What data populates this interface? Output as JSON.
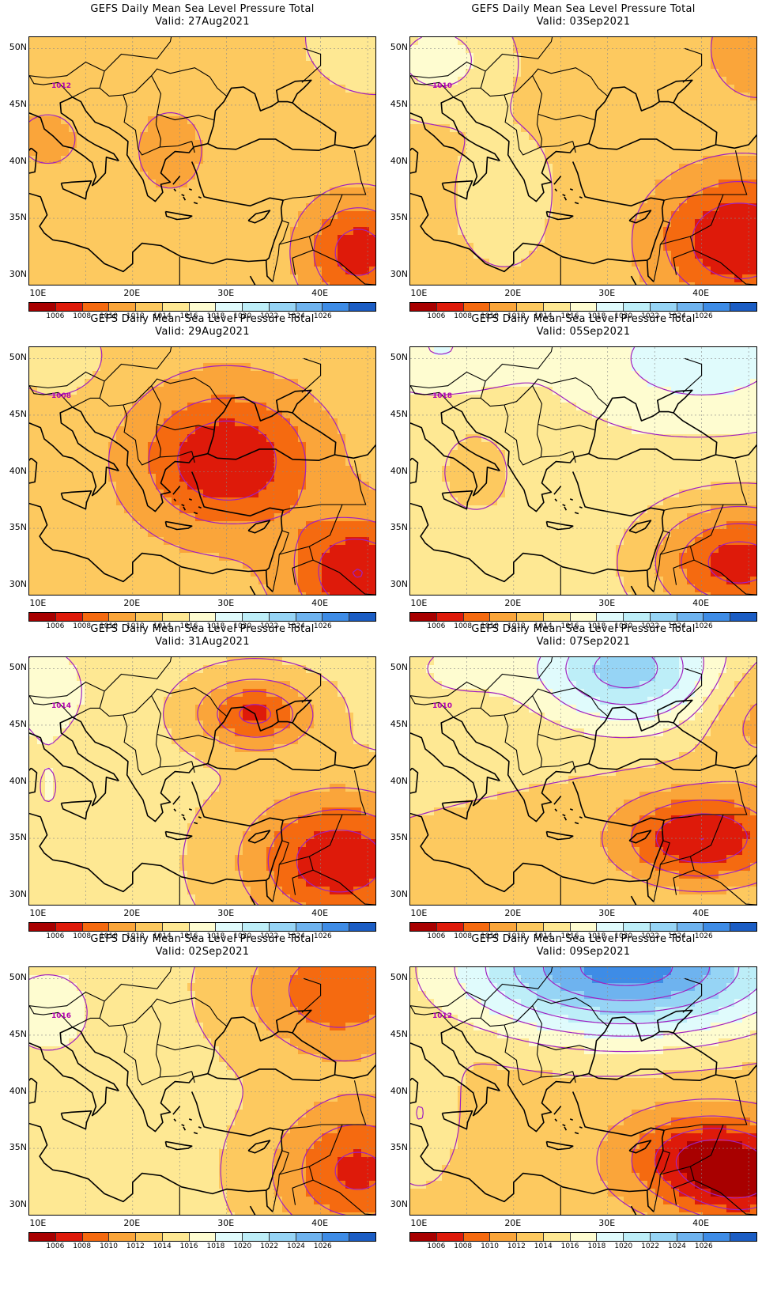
{
  "figure": {
    "panels": [
      {
        "title": "GEFS Daily Mean Sea Level Pressure Total",
        "valid": "Valid: 27Aug2021",
        "pattern": "mild_low",
        "contour_label": "1012"
      },
      {
        "title": "GEFS Daily Mean Sea Level Pressure Total",
        "valid": "Valid: 03Sep2021",
        "pattern": "east_low",
        "contour_label": "1010"
      },
      {
        "title": "GEFS Daily Mean Sea Level Pressure Total",
        "valid": "Valid: 29Aug2021",
        "pattern": "central_low",
        "contour_label": "1008"
      },
      {
        "title": "GEFS Daily Mean Sea Level Pressure Total",
        "valid": "Valid: 05Sep2021",
        "pattern": "north_high",
        "contour_label": "1018"
      },
      {
        "title": "GEFS Daily Mean Sea Level Pressure Total",
        "valid": "Valid: 31Aug2021",
        "pattern": "black_sea_low",
        "contour_label": "1014"
      },
      {
        "title": "GEFS Daily Mean Sea Level Pressure Total",
        "valid": "Valid: 07Sep2021",
        "pattern": "nw_high",
        "contour_label": "1010"
      },
      {
        "title": "GEFS Daily Mean Sea Level Pressure Total",
        "valid": "Valid: 02Sep2021",
        "pattern": "ne_low",
        "contour_label": "1016"
      },
      {
        "title": "GEFS Daily Mean Sea Level Pressure Total",
        "valid": "Valid: 09Sep2021",
        "pattern": "strong_high",
        "contour_label": "1012"
      }
    ],
    "lat_labels": [
      "50N",
      "45N",
      "40N",
      "35N",
      "30N"
    ],
    "lon_labels": [
      "10E",
      "20E",
      "30E",
      "40E"
    ],
    "colorbar_labels": [
      "1006",
      "1008",
      "1010",
      "1012",
      "1014",
      "1016",
      "1018",
      "1020",
      "1022",
      "1024",
      "1026"
    ],
    "colorbar_colors": [
      "#a80000",
      "#de1a0a",
      "#f56a10",
      "#faa53a",
      "#fdc95f",
      "#fee893",
      "#fefcd0",
      "#e0fbfc",
      "#bdeef8",
      "#96d4f5",
      "#6eb3ef",
      "#3e8ce6",
      "#1b5dc4"
    ],
    "contour_color": "#a020c0",
    "coast_color": "#000000"
  }
}
